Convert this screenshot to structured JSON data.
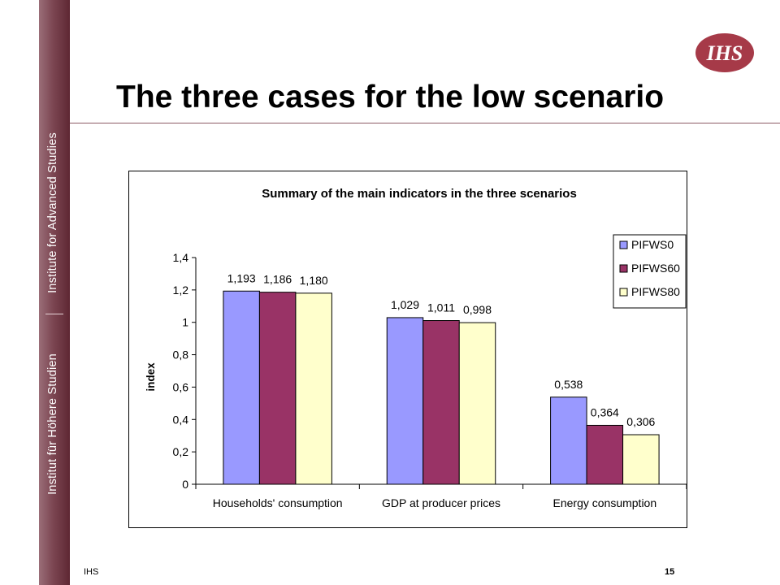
{
  "sidebar": {
    "top_text": "Institute for Advanced Studies",
    "bottom_text": "Institut für Höhere Studien"
  },
  "header": {
    "title": "The three cases for the low scenario",
    "logo_text": "IHS"
  },
  "footer": {
    "left": "IHS",
    "page": "15"
  },
  "colors": {
    "sidebar": "#7c4652",
    "header_rule": "#8c5a65",
    "logo": "#a63a48",
    "series": [
      "#9999ff",
      "#993366",
      "#ffffcc"
    ]
  },
  "chart_data": {
    "type": "bar",
    "title": "Summary of the main indicators in the three scenarios",
    "xlabel": "",
    "ylabel": "index",
    "categories": [
      "Households' consumption",
      "GDP at producer prices",
      "Energy consumption"
    ],
    "series": [
      {
        "name": "PIFWS0",
        "values": [
          1.193,
          1.029,
          0.538
        ],
        "labels": [
          "1,193",
          "1,029",
          "0,538"
        ]
      },
      {
        "name": "PIFWS60",
        "values": [
          1.186,
          1.011,
          0.364
        ],
        "labels": [
          "1,186",
          "1,011",
          "0,364"
        ]
      },
      {
        "name": "PIFWS80",
        "values": [
          1.18,
          0.998,
          0.306
        ],
        "labels": [
          "1,180",
          "0,998",
          "0,306"
        ]
      }
    ],
    "ylim": [
      0,
      1.4
    ],
    "yticks": [
      {
        "value": 0,
        "label": "0"
      },
      {
        "value": 0.2,
        "label": "0,2"
      },
      {
        "value": 0.4,
        "label": "0,4"
      },
      {
        "value": 0.6,
        "label": "0,6"
      },
      {
        "value": 0.8,
        "label": "0,8"
      },
      {
        "value": 1.0,
        "label": "1"
      },
      {
        "value": 1.2,
        "label": "1,2"
      },
      {
        "value": 1.4,
        "label": "1,4"
      }
    ],
    "grid": false,
    "legend_position": "top-right"
  }
}
